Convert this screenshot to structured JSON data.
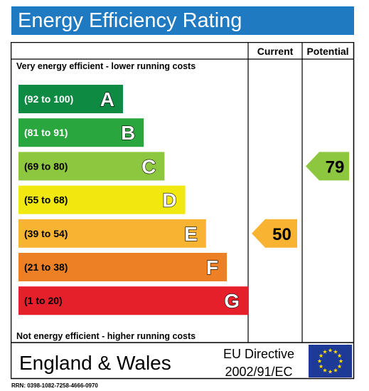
{
  "title": "Energy Efficiency Rating",
  "columns": {
    "current": "Current",
    "potential": "Potential"
  },
  "top_note": "Very energy efficient - lower running costs",
  "bottom_note": "Not energy efficient - higher running costs",
  "footer": {
    "region": "England & Wales",
    "directive_line1": "EU Directive",
    "directive_line2": "2002/91/EC",
    "flag": "eu-flag"
  },
  "rrn": "RRN: 0398-1082-7258-4666-0970",
  "chart_data": {
    "type": "bar",
    "categories": [
      "A",
      "B",
      "C",
      "D",
      "E",
      "F",
      "G"
    ],
    "ranges": [
      "(92 to 100)",
      "(81 to 91)",
      "(69 to 80)",
      "(55 to 68)",
      "(39 to 54)",
      "(21 to 38)",
      "(1 to 20)"
    ],
    "band_min": [
      92,
      81,
      69,
      55,
      39,
      21,
      1
    ],
    "colors": [
      "#0f8a43",
      "#2aa63e",
      "#8dc63f",
      "#f1e80f",
      "#f8b332",
      "#ed8024",
      "#e5202b"
    ],
    "range_text_colors": [
      "#ffffff",
      "#ffffff",
      "#000000",
      "#000000",
      "#000000",
      "#000000",
      "#000000"
    ],
    "current": {
      "value": 50,
      "band": "E",
      "color": "#f8b332"
    },
    "potential": {
      "value": 79,
      "band": "C",
      "color": "#8dc63f"
    }
  }
}
